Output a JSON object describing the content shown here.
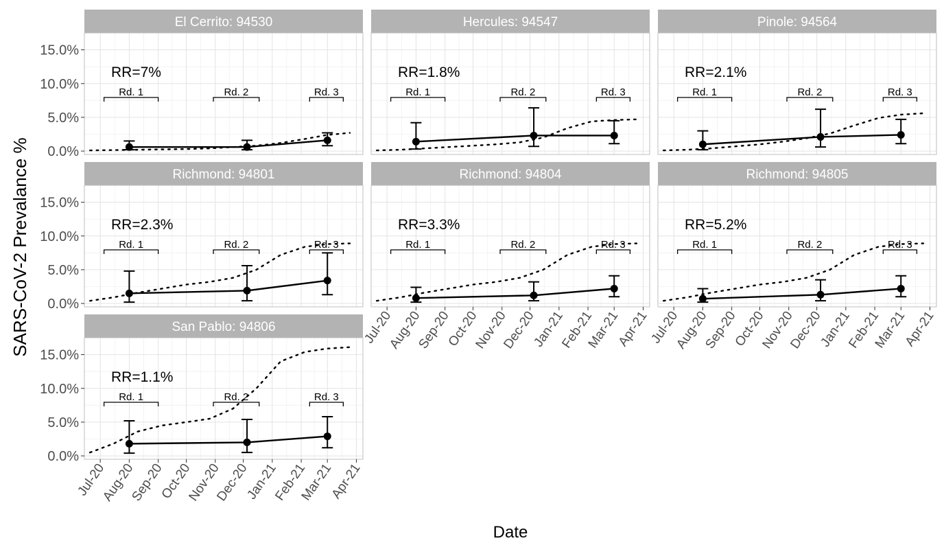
{
  "chart_data": {
    "type": "line",
    "xlabel": "Date",
    "ylabel": "SARS-CoV-2 Prevalance %",
    "x_tick_labels": [
      "Jul-20",
      "Aug-20",
      "Sep-20",
      "Oct-20",
      "Nov-20",
      "Dec-20",
      "Jan-21",
      "Feb-21",
      "Mar-21",
      "Apr-21"
    ],
    "y_tick_labels": [
      "0.0%",
      "5.0%",
      "10.0%",
      "15.0%"
    ],
    "ylim": [
      -0.5,
      17.5
    ],
    "xlim": [
      "2020-06-14",
      "2021-04-08"
    ],
    "grid": true,
    "round_labels": [
      "Rd. 1",
      "Rd. 2",
      "Rd. 3"
    ],
    "rounds": [
      {
        "start": "2020-07-05",
        "end": "2020-09-01"
      },
      {
        "start": "2020-10-30",
        "end": "2020-12-18"
      },
      {
        "start": "2021-02-10",
        "end": "2021-03-18"
      }
    ],
    "observed_dates": [
      "2020-08-01",
      "2020-12-05",
      "2021-03-01"
    ],
    "modeled_dates": [
      "2020-06-20",
      "2020-07-15",
      "2020-08-10",
      "2020-09-05",
      "2020-10-01",
      "2020-10-26",
      "2020-11-20",
      "2020-12-15",
      "2021-01-10",
      "2021-02-05",
      "2021-03-01",
      "2021-03-25"
    ],
    "panels": [
      {
        "title": "El Cerrito: 94530",
        "rr": "RR=7%",
        "points": [
          0.6,
          0.6,
          1.6
        ],
        "lower": [
          0.2,
          0.2,
          0.8
        ],
        "upper": [
          1.5,
          1.6,
          2.7
        ],
        "modeled": [
          0.1,
          0.15,
          0.2,
          0.25,
          0.3,
          0.4,
          0.6,
          0.8,
          1.2,
          1.8,
          2.4,
          2.7
        ]
      },
      {
        "title": "Hercules: 94547",
        "rr": "RR=1.8%",
        "points": [
          1.4,
          2.3,
          2.3
        ],
        "lower": [
          0.3,
          0.7,
          1.1
        ],
        "upper": [
          4.2,
          6.4,
          4.5
        ],
        "modeled": [
          0.1,
          0.2,
          0.4,
          0.6,
          0.8,
          1.0,
          1.3,
          2.0,
          3.4,
          4.4,
          4.6,
          4.7
        ]
      },
      {
        "title": "Pinole: 94564",
        "rr": "RR=2.1%",
        "points": [
          1.0,
          2.1,
          2.4
        ],
        "lower": [
          0.2,
          0.6,
          1.1
        ],
        "upper": [
          3.0,
          6.2,
          4.7
        ],
        "modeled": [
          0.1,
          0.2,
          0.4,
          0.7,
          1.0,
          1.4,
          1.9,
          2.6,
          3.8,
          4.9,
          5.4,
          5.6
        ]
      },
      {
        "title": "Richmond: 94801",
        "rr": "RR=2.3%",
        "points": [
          1.5,
          1.9,
          3.4
        ],
        "lower": [
          0.2,
          0.4,
          1.3
        ],
        "upper": [
          4.8,
          5.6,
          7.5
        ],
        "modeled": [
          0.4,
          0.9,
          1.6,
          2.2,
          2.8,
          3.2,
          3.8,
          5.0,
          7.2,
          8.4,
          8.8,
          8.9
        ]
      },
      {
        "title": "Richmond: 94804",
        "rr": "RR=3.3%",
        "points": [
          0.8,
          1.2,
          2.2
        ],
        "lower": [
          0.2,
          0.4,
          1.0
        ],
        "upper": [
          2.4,
          3.2,
          4.1
        ],
        "modeled": [
          0.4,
          0.9,
          1.6,
          2.2,
          2.8,
          3.2,
          3.8,
          5.0,
          7.2,
          8.4,
          8.8,
          8.9
        ]
      },
      {
        "title": "Richmond: 94805",
        "rr": "RR=5.2%",
        "points": [
          0.7,
          1.3,
          2.2
        ],
        "lower": [
          0.2,
          0.4,
          1.0
        ],
        "upper": [
          2.2,
          3.5,
          4.1
        ],
        "modeled": [
          0.4,
          0.9,
          1.6,
          2.2,
          2.8,
          3.2,
          3.8,
          5.0,
          7.2,
          8.4,
          8.8,
          8.9
        ]
      },
      {
        "title": "San Pablo: 94806",
        "rr": "RR=1.1%",
        "points": [
          1.8,
          2.0,
          2.9
        ],
        "lower": [
          0.4,
          0.5,
          1.2
        ],
        "upper": [
          5.2,
          5.4,
          5.8
        ],
        "modeled": [
          0.5,
          1.8,
          3.6,
          4.5,
          5.0,
          5.5,
          7.0,
          10.0,
          14.0,
          15.4,
          15.9,
          16.1
        ]
      }
    ]
  }
}
